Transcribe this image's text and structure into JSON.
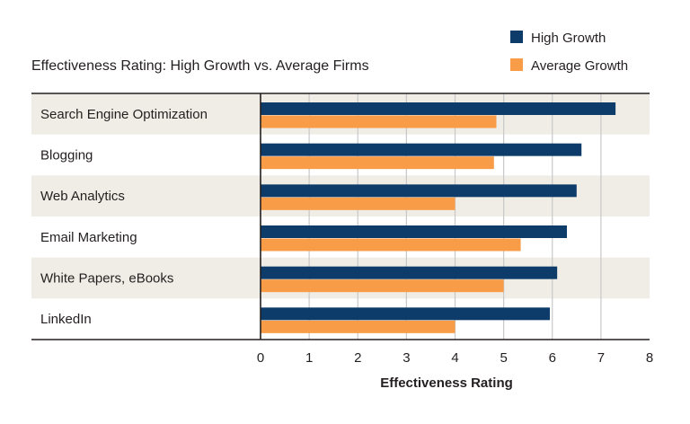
{
  "chart_data": {
    "type": "bar",
    "orientation": "horizontal",
    "title": "Effectiveness Rating: High Growth vs. Average Firms",
    "xlabel": "Effectiveness Rating",
    "ylabel": "",
    "xlim": [
      0,
      8
    ],
    "ticks": [
      "0",
      "1",
      "2",
      "3",
      "4",
      "5",
      "6",
      "7",
      "8"
    ],
    "categories": [
      "Search Engine Optimization",
      "Blogging",
      "Web Analytics",
      "Email Marketing",
      "White Papers, eBooks",
      "LinkedIn"
    ],
    "series": [
      {
        "name": "High Growth",
        "color": "#0d3c6b",
        "values": [
          7.3,
          6.6,
          6.5,
          6.3,
          6.1,
          5.95
        ]
      },
      {
        "name": "Average Growth",
        "color": "#f89c48",
        "values": [
          4.85,
          4.8,
          4.0,
          5.35,
          5.0,
          4.0
        ]
      }
    ],
    "band_color": "#efede5",
    "grid": true,
    "legend": "top-right"
  }
}
